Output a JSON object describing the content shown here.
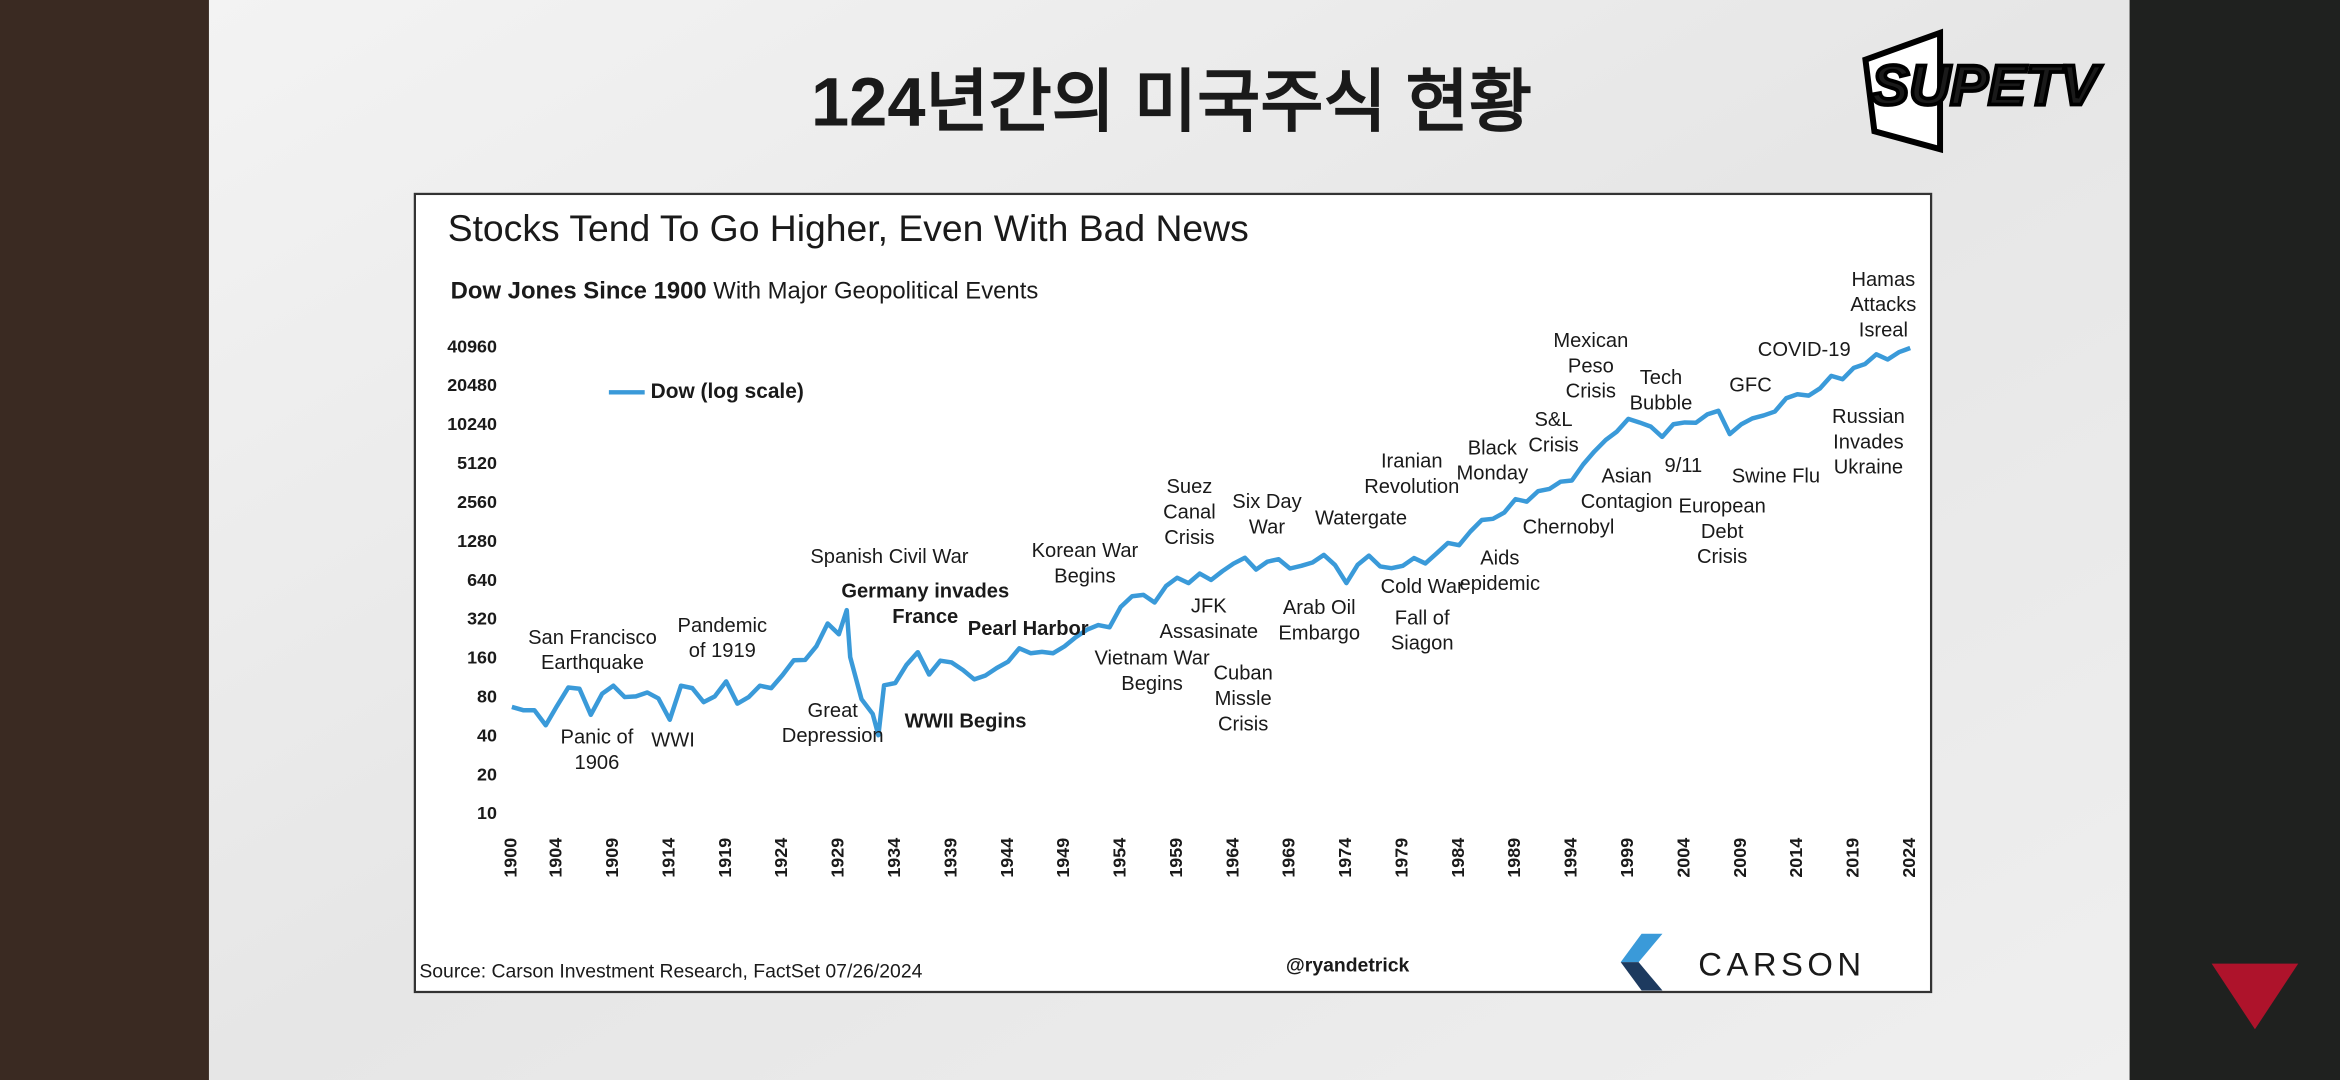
{
  "header_title": "124년간의 미국주식 현황",
  "logo_text": "SUPETV",
  "chart_data": {
    "type": "line",
    "title": "Stocks Tend To Go Higher, Even With Bad News",
    "subtitle_bold": "Dow Jones Since 1900",
    "subtitle": " With Major Geopolitical Events",
    "source": "Source: Carson Investment Research, FactSet 07/26/2024",
    "credit": "@ryandetrick",
    "brand": "CARSON",
    "yscale": "log",
    "log_base": 2,
    "ylim": [
      10,
      40960
    ],
    "yticks": [
      10,
      20,
      40,
      80,
      160,
      320,
      640,
      1280,
      2560,
      5120,
      10240,
      20480,
      40960
    ],
    "xlim": [
      1900,
      2024
    ],
    "xticks": [
      1900,
      1904,
      1909,
      1914,
      1919,
      1924,
      1929,
      1934,
      1939,
      1944,
      1949,
      1954,
      1959,
      1964,
      1969,
      1974,
      1979,
      1984,
      1989,
      1994,
      1999,
      2004,
      2009,
      2014,
      2019,
      2024
    ],
    "legend": "upper left",
    "x": [
      1900,
      1901,
      1902,
      1903,
      1904,
      1905,
      1906,
      1907,
      1908,
      1909,
      1910,
      1911,
      1912,
      1913,
      1914,
      1915,
      1916,
      1917,
      1918,
      1919,
      1920,
      1921,
      1922,
      1923,
      1924,
      1925,
      1926,
      1927,
      1928,
      1929,
      1929.7,
      1930,
      1931,
      1932,
      1932.5,
      1933,
      1934,
      1935,
      1936,
      1937,
      1938,
      1939,
      1940,
      1941,
      1942,
      1943,
      1944,
      1945,
      1946,
      1947,
      1948,
      1949,
      1950,
      1951,
      1952,
      1953,
      1954,
      1955,
      1956,
      1957,
      1958,
      1959,
      1960,
      1961,
      1962,
      1963,
      1964,
      1965,
      1966,
      1967,
      1968,
      1969,
      1970,
      1971,
      1972,
      1973,
      1974,
      1975,
      1976,
      1977,
      1978,
      1979,
      1980,
      1981,
      1982,
      1983,
      1984,
      1985,
      1986,
      1987,
      1988,
      1989,
      1990,
      1991,
      1992,
      1993,
      1994,
      1995,
      1996,
      1997,
      1998,
      1999,
      2000,
      2001,
      2002,
      2003,
      2004,
      2005,
      2006,
      2007,
      2008,
      2009,
      2010,
      2011,
      2012,
      2013,
      2014,
      2015,
      2016,
      2017,
      2018,
      2019,
      2020,
      2021,
      2022,
      2023,
      2024
    ],
    "series": [
      {
        "name": "Dow (log scale)",
        "color": "#3a9ad9",
        "values": [
          68,
          64,
          64,
          49,
          69,
          96,
          94,
          59,
          86,
          99,
          81,
          82,
          88,
          79,
          54,
          99,
          95,
          74,
          82,
          107,
          72,
          81,
          99,
          95,
          120,
          156,
          157,
          200,
          300,
          248,
          381,
          165,
          78,
          60,
          41,
          100,
          104,
          144,
          180,
          121,
          155,
          150,
          131,
          111,
          119,
          136,
          152,
          193,
          177,
          181,
          177,
          200,
          235,
          269,
          292,
          281,
          404,
          488,
          500,
          436,
          584,
          679,
          616,
          731,
          652,
          763,
          874,
          969,
          786,
          905,
          944,
          800,
          839,
          890,
          1020,
          851,
          616,
          852,
          1005,
          831,
          805,
          839,
          964,
          875,
          1047,
          1259,
          1212,
          1547,
          1896,
          1939,
          2169,
          2753,
          2634,
          3169,
          3301,
          3754,
          3834,
          5117,
          6448,
          7908,
          9181,
          11497,
          10787,
          10022,
          8342,
          10454,
          10783,
          10718,
          12463,
          13265,
          8776,
          10428,
          11578,
          12218,
          13104,
          16577,
          17823,
          17425,
          19763,
          24719,
          23327,
          28538,
          30606,
          36338,
          33147,
          37690,
          40589
        ]
      }
    ],
    "annotations": [
      {
        "lines": [
          "San Francisco",
          "Earthquake"
        ]
      },
      {
        "lines": [
          "Panic of",
          "1906"
        ]
      },
      {
        "lines": [
          "WWI"
        ]
      },
      {
        "lines": [
          "Pandemic",
          "of 1919"
        ],
        "color": "#2d4b8e"
      },
      {
        "lines": [
          "Spanish Civil War"
        ],
        "color": "#2d4b8e"
      },
      {
        "lines": [
          "Germany invades",
          "France"
        ],
        "bold": true
      },
      {
        "lines": [
          "Great",
          "Depression"
        ]
      },
      {
        "lines": [
          "WWII Begins"
        ],
        "bold": true
      },
      {
        "lines": [
          "Pearl Harbor"
        ],
        "bold": true
      },
      {
        "lines": [
          "Korean War",
          "Begins"
        ]
      },
      {
        "lines": [
          "Vietnam War",
          "Begins"
        ]
      },
      {
        "lines": [
          "Suez",
          "Canal",
          "Crisis"
        ]
      },
      {
        "lines": [
          "JFK",
          "Assasinate"
        ]
      },
      {
        "lines": [
          "Cuban",
          "Missle",
          "Crisis"
        ]
      },
      {
        "lines": [
          "Six Day",
          "War"
        ]
      },
      {
        "lines": [
          "Watergate"
        ]
      },
      {
        "lines": [
          "Arab Oil",
          "Embargo"
        ]
      },
      {
        "lines": [
          "Iranian",
          "Revolution"
        ]
      },
      {
        "lines": [
          "Cold War"
        ]
      },
      {
        "lines": [
          "Aids",
          "epidemic"
        ]
      },
      {
        "lines": [
          "Fall of",
          "Siagon"
        ]
      },
      {
        "lines": [
          "Black",
          "Monday"
        ]
      },
      {
        "lines": [
          "S&L",
          "Crisis"
        ]
      },
      {
        "lines": [
          "Chernobyl"
        ]
      },
      {
        "lines": [
          "Mexican",
          "Peso",
          "Crisis"
        ]
      },
      {
        "lines": [
          "Asian",
          "Contagion"
        ]
      },
      {
        "lines": [
          "Tech",
          "Bubble"
        ]
      },
      {
        "lines": [
          "9/11"
        ]
      },
      {
        "lines": [
          "European",
          "Debt",
          "Crisis"
        ]
      },
      {
        "lines": [
          "GFC"
        ]
      },
      {
        "lines": [
          "Swine Flu"
        ]
      },
      {
        "lines": [
          "COVID-19"
        ]
      },
      {
        "lines": [
          "Hamas",
          "Attacks",
          "Isreal"
        ]
      },
      {
        "lines": [
          "Russian",
          "Invades",
          "Ukraine"
        ]
      }
    ]
  }
}
